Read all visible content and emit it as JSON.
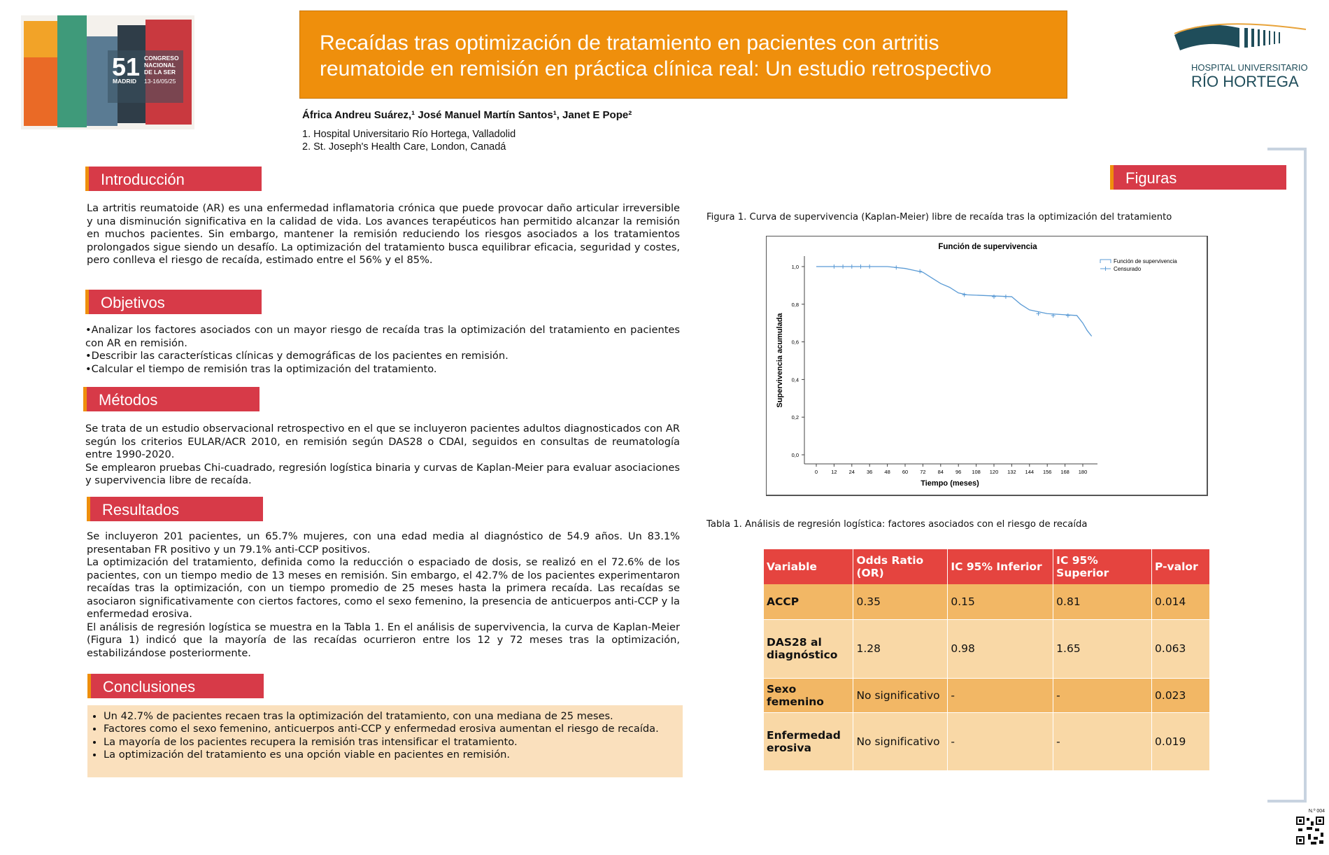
{
  "logo": {
    "number": "51",
    "line1": "CONGRESO",
    "line2": "NACIONAL",
    "line3": "DE LA SER",
    "city": "MADRID",
    "dates": "13-16/05/25"
  },
  "header": {
    "title": "Recaídas tras optimización de tratamiento en pacientes con artritis reumatoide en remisión en práctica clínica real: Un estudio retrospectivo",
    "hospital_line1": "HOSPITAL UNIVERSITARIO",
    "hospital_line2": "RÍO HORTEGA"
  },
  "authors": "África Andreu Suárez,¹ José Manuel Martín Santos¹, Janet E Pope²",
  "affiliations": [
    "1. Hospital Universitario Río Hortega, Valladolid",
    "2. St. Joseph's Health Care, London, Canadá"
  ],
  "sections": {
    "intro": {
      "heading": "Introducción",
      "paragraphs": [
        "La artritis reumatoide (AR) es una enfermedad inflamatoria crónica que puede provocar daño articular irreversible y una disminución significativa en la calidad de vida. Los avances terapéuticos han permitido alcanzar la remisión en muchos pacientes. Sin embargo, mantener la remisión reduciendo los riesgos asociados a los tratamientos prolongados sigue siendo un desafío. La optimización del tratamiento busca equilibrar eficacia, seguridad y costes, pero conlleva el riesgo de recaída, estimado entre el 56% y el 85%."
      ]
    },
    "objectives": {
      "heading": "Objetivos",
      "paragraphs": [
        "•Analizar los factores asociados con un mayor riesgo de recaída tras la optimización del tratamiento en pacientes con AR en remisión.",
        "•Describir las características clínicas y demográficas de los pacientes en remisión.",
        "•Calcular el tiempo de remisión tras la optimización del tratamiento."
      ]
    },
    "methods": {
      "heading": "Métodos",
      "paragraphs": [
        "Se trata de un estudio observacional retrospectivo en el que se incluyeron pacientes adultos diagnosticados con AR según los criterios EULAR/ACR 2010, en remisión según DAS28 o CDAI, seguidos en consultas de reumatología entre 1990-2020.",
        "Se emplearon pruebas Chi-cuadrado, regresión logística binaria y curvas de Kaplan-Meier para evaluar asociaciones y supervivencia libre de recaída."
      ]
    },
    "results": {
      "heading": "Resultados",
      "paragraphs": [
        "Se incluyeron 201 pacientes, un 65.7% mujeres, con una edad media al diagnóstico de 54.9 años. Un 83.1% presentaban FR positivo y un 79.1% anti-CCP positivos.",
        "La optimización del tratamiento, definida como la reducción o espaciado de dosis, se realizó en el 72.6% de los pacientes, con un tiempo medio de 13 meses en remisión. Sin embargo, el 42.7% de los pacientes experimentaron recaídas tras la optimización, con un tiempo promedio de 25 meses hasta la primera recaída. Las recaídas se asociaron significativamente con ciertos factores, como el sexo femenino, la presencia de anticuerpos anti-CCP y la enfermedad erosiva.",
        "El análisis de regresión logística se muestra en la Tabla 1. En el análisis de supervivencia, la curva de Kaplan-Meier (Figura 1) indicó que la mayoría de las recaídas ocurrieron entre los 12 y 72 meses tras la optimización, estabilizándose posteriormente."
      ]
    },
    "conclusions": {
      "heading": "Conclusiones",
      "items": [
        "Un 42.7% de pacientes recaen tras la optimización del tratamiento, con una mediana de 25 meses.",
        "Factores como el sexo femenino, anticuerpos anti-CCP y enfermedad erosiva aumentan el riesgo de recaída.",
        "La mayoría de los pacientes recupera la remisión tras intensificar el tratamiento.",
        "La optimización del tratamiento es una opción viable en pacientes en remisión."
      ]
    }
  },
  "figures": {
    "heading": "Figuras",
    "figure_caption": "Figura 1. Curva de supervivencia (Kaplan-Meier) libre de recaída tras la optimización del tratamiento",
    "table_caption": "Tabla 1. Análisis de regresión logística: factores asociados con el riesgo de recaída"
  },
  "chart_data": {
    "type": "line",
    "title": "Función de supervivencia",
    "x_label": "Tiempo (meses)",
    "y_label": "Supervivencia acumulada",
    "xlim": [
      0,
      180
    ],
    "ylim": [
      0,
      1
    ],
    "xticks": [
      0,
      12,
      24,
      36,
      48,
      60,
      72,
      84,
      96,
      108,
      120,
      132,
      144,
      156,
      168,
      180
    ],
    "yticks": [
      {
        "value": 0,
        "label": "0,0"
      },
      {
        "value": 0.2,
        "label": "0,2"
      },
      {
        "value": 0.4,
        "label": "0,4"
      },
      {
        "value": 0.6,
        "label": "0,6"
      },
      {
        "value": 0.8,
        "label": "0,8"
      },
      {
        "value": 1,
        "label": "1,0"
      }
    ],
    "series": [
      {
        "name": "Función de supervivencia",
        "color": "#5b9bd5",
        "x": [
          0,
          48,
          60,
          66,
          72,
          78,
          84,
          90,
          96,
          102,
          132,
          138,
          144,
          156,
          176,
          180,
          183,
          186
        ],
        "values": [
          1.0,
          1.0,
          0.99,
          0.98,
          0.97,
          0.94,
          0.91,
          0.89,
          0.86,
          0.85,
          0.84,
          0.8,
          0.77,
          0.75,
          0.74,
          0.7,
          0.66,
          0.63
        ]
      },
      {
        "name": "Censurado",
        "color": "#5b9bd5",
        "x": [
          12,
          18,
          24,
          30,
          36,
          54,
          70,
          100,
          120,
          128,
          150,
          160,
          170
        ],
        "values": [
          1.0,
          1.0,
          1.0,
          1.0,
          1.0,
          0.995,
          0.975,
          0.85,
          0.84,
          0.84,
          0.75,
          0.74,
          0.74
        ]
      }
    ]
  },
  "table": {
    "columns": [
      "Variable",
      "Odds Ratio (OR)",
      "IC 95% Inferior",
      "IC 95% Superior",
      "P-valor"
    ],
    "rows": [
      [
        "ACCP",
        "0.35",
        "0.15",
        "0.81",
        "0.014"
      ],
      [
        "DAS28 al diagnóstico",
        "1.28",
        "0.98",
        "1.65",
        "0.063"
      ],
      [
        "Sexo femenino",
        "No significativo",
        "-",
        "-",
        "0.023"
      ],
      [
        "Enfermedad erosiva",
        "No significativo",
        "-",
        "-",
        "0.019"
      ]
    ]
  },
  "poster_number": "N.º 004"
}
